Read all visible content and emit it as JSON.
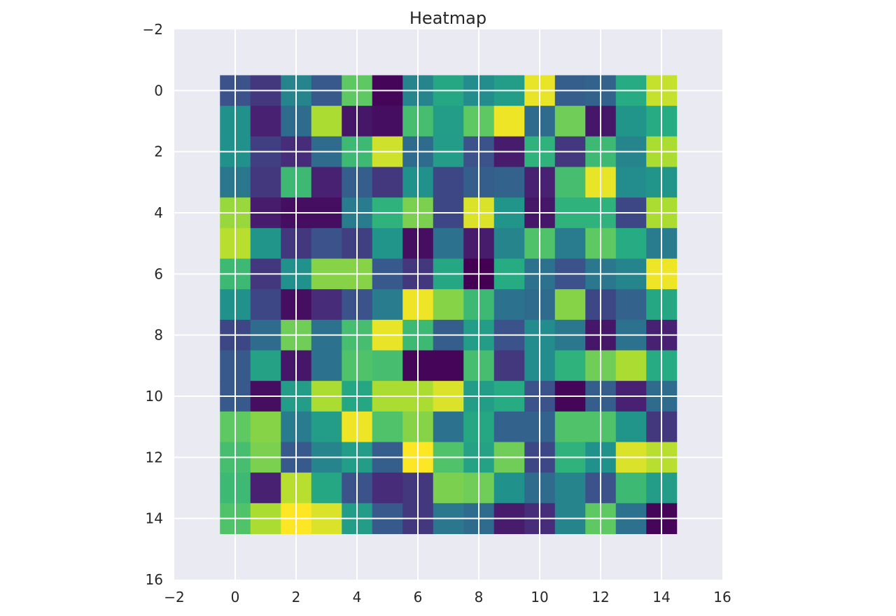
{
  "chart_data": {
    "type": "heatmap",
    "title": "Heatmap",
    "xlabel": "",
    "ylabel": "",
    "colormap": "viridis",
    "vmin": 0,
    "vmax": 1,
    "xlim": [
      -2,
      16
    ],
    "ylim": [
      16,
      -2
    ],
    "y_inverted": true,
    "xticks": [
      -2,
      0,
      2,
      4,
      6,
      8,
      10,
      12,
      14,
      16
    ],
    "yticks": [
      -2,
      0,
      2,
      4,
      6,
      8,
      10,
      12,
      14,
      16
    ],
    "xtick_labels": [
      "−2",
      "0",
      "2",
      "4",
      "6",
      "8",
      "10",
      "12",
      "14",
      "16"
    ],
    "ytick_labels": [
      "−2",
      "0",
      "2",
      "4",
      "6",
      "8",
      "10",
      "12",
      "14",
      "16"
    ],
    "grid": true,
    "background_color": "#eaeaf2",
    "grid_color": "#ffffff",
    "cell_extent": {
      "col_start": -0.5,
      "row_start": -0.5
    },
    "values": [
      [
        0.25,
        0.18,
        0.45,
        0.28,
        0.75,
        0.02,
        0.45,
        0.6,
        0.48,
        0.55,
        0.97,
        0.3,
        0.32,
        0.62,
        0.92
      ],
      [
        0.5,
        0.12,
        0.35,
        0.88,
        0.08,
        0.05,
        0.7,
        0.55,
        0.75,
        0.98,
        0.35,
        0.78,
        0.08,
        0.52,
        0.62
      ],
      [
        0.5,
        0.2,
        0.15,
        0.35,
        0.68,
        0.93,
        0.35,
        0.55,
        0.25,
        0.1,
        0.65,
        0.18,
        0.68,
        0.45,
        0.88
      ],
      [
        0.4,
        0.18,
        0.68,
        0.12,
        0.3,
        0.18,
        0.5,
        0.22,
        0.3,
        0.32,
        0.12,
        0.7,
        0.97,
        0.48,
        0.52
      ],
      [
        0.85,
        0.1,
        0.05,
        0.05,
        0.42,
        0.65,
        0.8,
        0.22,
        0.95,
        0.52,
        0.08,
        0.65,
        0.65,
        0.22,
        0.88
      ],
      [
        0.9,
        0.52,
        0.18,
        0.25,
        0.2,
        0.52,
        0.05,
        0.38,
        0.1,
        0.45,
        0.72,
        0.42,
        0.75,
        0.62,
        0.42
      ],
      [
        0.68,
        0.18,
        0.5,
        0.82,
        0.82,
        0.28,
        0.18,
        0.6,
        0.0,
        0.62,
        0.38,
        0.25,
        0.4,
        0.45,
        0.98
      ],
      [
        0.5,
        0.22,
        0.05,
        0.15,
        0.25,
        0.42,
        0.98,
        0.82,
        0.68,
        0.38,
        0.35,
        0.82,
        0.22,
        0.32,
        0.6
      ],
      [
        0.22,
        0.35,
        0.78,
        0.38,
        0.7,
        0.97,
        0.68,
        0.3,
        0.55,
        0.25,
        0.48,
        0.4,
        0.08,
        0.38,
        0.12
      ],
      [
        0.28,
        0.58,
        0.08,
        0.38,
        0.72,
        0.7,
        0.02,
        0.02,
        0.7,
        0.18,
        0.48,
        0.65,
        0.78,
        0.88,
        0.62
      ],
      [
        0.28,
        0.05,
        0.55,
        0.88,
        0.6,
        0.88,
        0.88,
        0.95,
        0.55,
        0.62,
        0.25,
        0.02,
        0.3,
        0.12,
        0.35
      ],
      [
        0.75,
        0.82,
        0.42,
        0.55,
        0.98,
        0.72,
        0.82,
        0.38,
        0.6,
        0.32,
        0.32,
        0.72,
        0.72,
        0.52,
        0.18
      ],
      [
        0.7,
        0.8,
        0.28,
        0.45,
        0.55,
        0.3,
        1.0,
        0.72,
        0.58,
        0.78,
        0.22,
        0.65,
        0.5,
        0.95,
        0.9
      ],
      [
        0.68,
        0.12,
        0.9,
        0.6,
        0.25,
        0.15,
        0.18,
        0.8,
        0.78,
        0.5,
        0.35,
        0.45,
        0.25,
        0.68,
        0.55
      ],
      [
        0.72,
        0.88,
        1.0,
        0.95,
        0.55,
        0.28,
        0.18,
        0.4,
        0.35,
        0.1,
        0.15,
        0.45,
        0.75,
        0.38,
        0.02
      ]
    ]
  }
}
